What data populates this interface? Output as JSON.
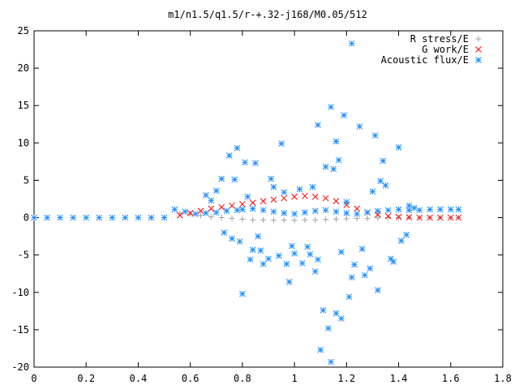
{
  "chart_data": {
    "type": "scatter",
    "title": "m1/n1.5/q1.5/r-+.32-j168/M0.05/512",
    "xlabel": "",
    "ylabel": "",
    "xlim": [
      0,
      1.8
    ],
    "ylim": [
      -20,
      25
    ],
    "xticks": [
      0,
      0.2,
      0.4,
      0.6,
      0.8,
      1,
      1.2,
      1.4,
      1.6,
      1.8
    ],
    "yticks": [
      -20,
      -15,
      -10,
      -5,
      0,
      5,
      10,
      15,
      20,
      25
    ],
    "xtick_labels": [
      "0",
      "0.2",
      "0.4",
      "0.6",
      "0.8",
      "1",
      "1.2",
      "1.4",
      "1.6",
      "1.8"
    ],
    "ytick_labels": [
      "-20",
      "-15",
      "-10",
      "-5",
      "0",
      "5",
      "10",
      "15",
      "20",
      "25"
    ],
    "grid": false,
    "legend_position": "top-right",
    "series": [
      {
        "name": "R stress/E",
        "marker": "plus",
        "color": "#a0a0a0",
        "x": [
          0.56,
          0.6,
          0.64,
          0.68,
          0.72,
          0.76,
          0.8,
          0.84,
          0.88,
          0.92,
          0.96,
          1.0,
          1.04,
          1.08,
          1.12,
          1.16,
          1.2,
          1.24,
          1.28,
          1.32,
          1.36,
          1.4,
          1.44,
          1.48,
          1.52,
          1.56,
          1.6,
          1.63
        ],
        "y": [
          0.6,
          0.5,
          0.3,
          0.1,
          0.0,
          -0.1,
          -0.2,
          -0.3,
          -0.3,
          -0.35,
          -0.35,
          -0.35,
          -0.3,
          -0.3,
          -0.25,
          -0.2,
          -0.15,
          -0.1,
          -0.1,
          -0.05,
          0.0,
          0.0,
          0.0,
          0.0,
          0.0,
          0.0,
          0.0,
          0.0
        ]
      },
      {
        "name": "G work/E",
        "marker": "cross",
        "color": "#ff0000",
        "x": [
          0.56,
          0.6,
          0.64,
          0.68,
          0.72,
          0.76,
          0.8,
          0.84,
          0.88,
          0.92,
          0.96,
          1.0,
          1.04,
          1.08,
          1.12,
          1.16,
          1.2,
          1.24,
          1.28,
          1.32,
          1.36,
          1.4,
          1.44,
          1.48,
          1.52,
          1.56,
          1.6,
          1.63
        ],
        "y": [
          0.3,
          0.6,
          0.9,
          1.2,
          1.4,
          1.6,
          1.8,
          2.0,
          2.2,
          2.4,
          2.6,
          2.8,
          2.9,
          2.8,
          2.6,
          2.2,
          1.7,
          1.2,
          0.7,
          0.4,
          0.2,
          0.1,
          0.05,
          0.0,
          0.0,
          0.0,
          0.0,
          0.0
        ]
      },
      {
        "name": "Acoustic flux/E",
        "marker": "star",
        "color": "#1f8fff",
        "x": [
          0.0,
          0.05,
          0.1,
          0.15,
          0.2,
          0.25,
          0.3,
          0.35,
          0.4,
          0.45,
          0.5,
          0.54,
          0.58,
          0.62,
          0.66,
          0.7,
          0.74,
          0.78,
          0.8,
          0.84,
          0.88,
          0.92,
          0.96,
          1.0,
          1.04,
          1.08,
          1.12,
          1.16,
          1.2,
          1.24,
          1.28,
          1.32,
          1.36,
          1.4,
          1.44,
          1.48,
          1.52,
          1.56,
          1.6,
          1.63,
          0.78,
          0.81,
          0.95,
          1.14,
          1.22,
          1.19,
          1.09,
          1.13,
          0.8,
          0.98,
          1.18,
          1.21,
          1.4,
          0.83,
          1.31,
          1.34,
          0.88,
          0.75,
          0.91,
          1.03,
          1.11,
          1.25,
          1.29,
          0.85,
          0.92,
          1.06,
          1.16,
          1.27,
          1.37,
          0.7,
          0.76,
          0.87,
          0.97,
          1.02,
          1.08,
          1.15,
          1.22,
          1.33,
          1.43,
          0.68,
          0.79,
          0.9,
          1.0,
          1.12,
          1.23,
          1.35,
          1.46,
          0.73,
          0.82,
          0.94,
          1.05,
          1.17,
          1.26,
          1.38,
          0.66,
          0.77,
          0.86,
          0.99,
          1.07,
          1.18,
          1.3,
          1.41,
          0.72,
          0.84,
          0.96,
          1.09,
          1.2,
          1.32,
          1.44,
          1.1,
          1.14,
          1.16
        ],
        "y": [
          0,
          0,
          0,
          0,
          0,
          0,
          0,
          0,
          0,
          0,
          0,
          1.1,
          0.8,
          0.5,
          0.6,
          0.7,
          0.9,
          1.0,
          1.1,
          1.2,
          1.0,
          0.8,
          0.6,
          0.5,
          0.7,
          0.9,
          1.0,
          0.8,
          0.6,
          0.5,
          0.7,
          0.9,
          1.0,
          1.1,
          1.0,
          1.0,
          1.1,
          1.1,
          1.1,
          1.1,
          9.3,
          7.4,
          9.9,
          14.8,
          23.3,
          13.7,
          12.4,
          -14.8,
          -10.2,
          -8.6,
          -13.5,
          -10.6,
          9.4,
          -5.6,
          11.0,
          7.6,
          -6.2,
          8.3,
          5.2,
          -6.1,
          -12.4,
          12.2,
          -6.8,
          7.3,
          4.1,
          -4.9,
          10.2,
          -7.7,
          -5.5,
          3.6,
          -2.8,
          -4.4,
          -6.2,
          3.8,
          -7.2,
          6.5,
          -8.0,
          4.9,
          -2.3,
          2.3,
          -3.2,
          -5.5,
          -4.8,
          6.8,
          -6.3,
          4.3,
          1.3,
          -2.0,
          2.8,
          -5.1,
          -3.9,
          7.7,
          -4.2,
          -5.9,
          3.0,
          5.1,
          -2.5,
          -3.8,
          4.1,
          -4.6,
          3.5,
          -3.1,
          5.2,
          -4.3,
          3.4,
          -5.6,
          2.1,
          -9.7,
          1.6,
          -17.7,
          -19.3,
          -12.8
        ]
      }
    ]
  }
}
